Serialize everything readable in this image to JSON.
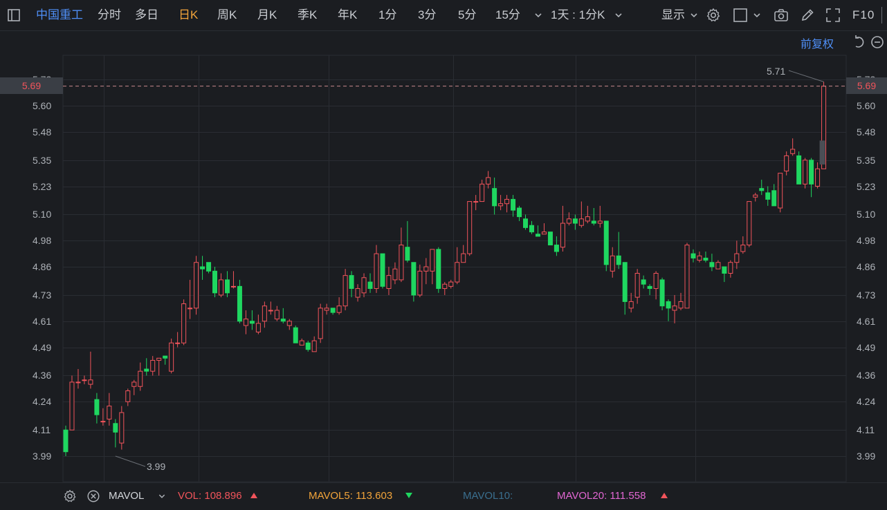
{
  "toolbar": {
    "stock_name": "中国重工",
    "periods": [
      "分时",
      "多日",
      "日K",
      "周K",
      "月K",
      "季K",
      "年K",
      "1分",
      "3分",
      "5分",
      "15分"
    ],
    "active_period": "日K",
    "range_select": "1天 : 1分K",
    "display_label": "显示",
    "f10_label": "F10"
  },
  "chart": {
    "adjust_label": "前复权",
    "current_price_left": "5.69",
    "current_price_right": "5.69",
    "high_annotation": "5.71",
    "low_annotation": "3.99",
    "y_ticks": [
      "5.72",
      "5.60",
      "5.48",
      "5.35",
      "5.23",
      "5.10",
      "4.98",
      "4.86",
      "4.73",
      "4.61",
      "4.49",
      "4.36",
      "4.24",
      "4.11",
      "3.99"
    ],
    "colors": {
      "up": "#f2545b",
      "down": "#1fd760",
      "bg": "#1b1d21",
      "grid": "#2a2d33"
    }
  },
  "indicator": {
    "name": "MAVOL",
    "vol_label": "VOL: 108.896",
    "mavol5_label": "MAVOL5: 113.603",
    "mavol10_label": "MAVOL10:",
    "mavol20_label": "MAVOL20: 111.558"
  },
  "chart_data": {
    "type": "candlestick",
    "title": "",
    "y_range": [
      3.93,
      5.75
    ],
    "candles": [
      [
        4.11,
        4.01,
        4.13,
        3.99
      ],
      [
        4.11,
        4.33,
        4.36,
        4.11
      ],
      [
        4.33,
        4.33,
        4.39,
        4.3
      ],
      [
        4.34,
        4.34,
        4.36,
        4.32
      ],
      [
        4.32,
        4.34,
        4.47,
        4.3
      ],
      [
        4.25,
        4.18,
        4.28,
        4.14
      ],
      [
        4.15,
        4.15,
        4.21,
        4.13
      ],
      [
        4.16,
        4.22,
        4.28,
        4.13
      ],
      [
        4.14,
        4.1,
        4.16,
        4.03
      ],
      [
        4.05,
        4.19,
        4.22,
        4.02
      ],
      [
        4.24,
        4.29,
        4.3,
        4.22
      ],
      [
        4.31,
        4.33,
        4.34,
        4.27
      ],
      [
        4.31,
        4.38,
        4.42,
        4.29
      ],
      [
        4.39,
        4.38,
        4.44,
        4.36
      ],
      [
        4.38,
        4.43,
        4.45,
        4.36
      ],
      [
        4.43,
        4.44,
        4.44,
        4.36
      ],
      [
        4.45,
        4.44,
        4.45,
        4.41
      ],
      [
        4.38,
        4.51,
        4.53,
        4.37
      ],
      [
        4.51,
        4.51,
        4.56,
        4.49
      ],
      [
        4.51,
        4.69,
        4.71,
        4.5
      ],
      [
        4.67,
        4.67,
        4.8,
        4.62
      ],
      [
        4.67,
        4.88,
        4.91,
        4.64
      ],
      [
        4.86,
        4.85,
        4.91,
        4.8
      ],
      [
        4.88,
        4.84,
        4.88,
        4.83
      ],
      [
        4.84,
        4.74,
        4.86,
        4.72
      ],
      [
        4.73,
        4.8,
        4.83,
        4.72
      ],
      [
        4.8,
        4.74,
        4.84,
        4.72
      ],
      [
        4.77,
        4.77,
        4.84,
        4.76
      ],
      [
        4.77,
        4.61,
        4.8,
        4.6
      ],
      [
        4.59,
        4.62,
        4.66,
        4.55
      ],
      [
        4.61,
        4.6,
        4.66,
        4.57
      ],
      [
        4.56,
        4.6,
        4.64,
        4.55
      ],
      [
        4.61,
        4.68,
        4.7,
        4.58
      ],
      [
        4.66,
        4.66,
        4.7,
        4.64
      ],
      [
        4.62,
        4.66,
        4.68,
        4.61
      ],
      [
        4.62,
        4.61,
        4.67,
        4.6
      ],
      [
        4.59,
        4.61,
        4.62,
        4.57
      ],
      [
        4.58,
        4.51,
        4.59,
        4.51
      ],
      [
        4.5,
        4.52,
        4.53,
        4.5
      ],
      [
        4.51,
        4.48,
        4.52,
        4.47
      ],
      [
        4.47,
        4.52,
        4.54,
        4.47
      ],
      [
        4.53,
        4.67,
        4.69,
        4.51
      ],
      [
        4.66,
        4.67,
        4.69,
        4.64
      ],
      [
        4.67,
        4.65,
        4.67,
        4.64
      ],
      [
        4.65,
        4.68,
        4.72,
        4.64
      ],
      [
        4.68,
        4.82,
        4.85,
        4.66
      ],
      [
        4.82,
        4.76,
        4.84,
        4.72
      ],
      [
        4.72,
        4.76,
        4.78,
        4.7
      ],
      [
        4.74,
        4.81,
        4.83,
        4.72
      ],
      [
        4.79,
        4.76,
        4.83,
        4.74
      ],
      [
        4.76,
        4.92,
        4.96,
        4.74
      ],
      [
        4.92,
        4.77,
        4.92,
        4.76
      ],
      [
        4.76,
        4.82,
        4.86,
        4.73
      ],
      [
        4.8,
        4.85,
        4.88,
        4.78
      ],
      [
        4.8,
        4.96,
        5.04,
        4.79
      ],
      [
        4.95,
        4.89,
        5.07,
        4.88
      ],
      [
        4.88,
        4.73,
        4.88,
        4.7
      ],
      [
        4.73,
        4.84,
        4.87,
        4.72
      ],
      [
        4.84,
        4.86,
        4.9,
        4.78
      ],
      [
        4.84,
        4.94,
        4.94,
        4.78
      ],
      [
        4.94,
        4.76,
        4.95,
        4.74
      ],
      [
        4.76,
        4.78,
        4.79,
        4.73
      ],
      [
        4.77,
        4.79,
        4.8,
        4.76
      ],
      [
        4.79,
        4.88,
        4.95,
        4.78
      ],
      [
        4.88,
        4.92,
        4.96,
        4.88
      ],
      [
        4.92,
        5.16,
        5.16,
        4.91
      ],
      [
        5.16,
        5.16,
        5.19,
        5.12
      ],
      [
        5.16,
        5.24,
        5.26,
        5.16
      ],
      [
        5.24,
        5.27,
        5.3,
        5.22
      ],
      [
        5.22,
        5.14,
        5.27,
        5.1
      ],
      [
        5.14,
        5.15,
        5.19,
        5.12
      ],
      [
        5.15,
        5.17,
        5.19,
        5.11
      ],
      [
        5.17,
        5.12,
        5.19,
        5.09
      ],
      [
        5.13,
        5.09,
        5.14,
        5.07
      ],
      [
        5.08,
        5.04,
        5.1,
        5.03
      ],
      [
        5.05,
        5.02,
        5.07,
        5.01
      ],
      [
        5.01,
        5.0,
        5.05,
        5.0
      ],
      [
        5.01,
        5.02,
        5.06,
        5.01
      ],
      [
        5.02,
        4.96,
        5.02,
        4.96
      ],
      [
        4.96,
        4.93,
        5.0,
        4.91
      ],
      [
        4.95,
        5.06,
        5.14,
        4.93
      ],
      [
        5.06,
        5.08,
        5.11,
        5.05
      ],
      [
        5.08,
        5.06,
        5.1,
        5.03
      ],
      [
        5.05,
        5.08,
        5.16,
        5.04
      ],
      [
        5.07,
        5.09,
        5.14,
        5.06
      ],
      [
        5.07,
        5.06,
        5.13,
        5.05
      ],
      [
        5.06,
        5.07,
        5.14,
        5.04
      ],
      [
        5.07,
        4.87,
        5.07,
        4.84
      ],
      [
        4.84,
        4.91,
        4.95,
        4.81
      ],
      [
        4.91,
        4.87,
        5.02,
        4.85
      ],
      [
        4.88,
        4.7,
        4.88,
        4.64
      ],
      [
        4.67,
        4.7,
        4.74,
        4.65
      ],
      [
        4.72,
        4.83,
        4.85,
        4.69
      ],
      [
        4.8,
        4.78,
        4.82,
        4.76
      ],
      [
        4.77,
        4.76,
        4.78,
        4.73
      ],
      [
        4.76,
        4.83,
        4.84,
        4.71
      ],
      [
        4.8,
        4.68,
        4.81,
        4.66
      ],
      [
        4.7,
        4.67,
        4.71,
        4.61
      ],
      [
        4.66,
        4.68,
        4.73,
        4.6
      ],
      [
        4.67,
        4.7,
        4.74,
        4.66
      ],
      [
        4.67,
        4.96,
        4.97,
        4.67
      ],
      [
        4.92,
        4.9,
        4.94,
        4.88
      ],
      [
        4.89,
        4.91,
        4.93,
        4.88
      ],
      [
        4.9,
        4.89,
        4.93,
        4.88
      ],
      [
        4.88,
        4.86,
        4.92,
        4.84
      ],
      [
        4.85,
        4.88,
        4.89,
        4.85
      ],
      [
        4.86,
        4.83,
        4.86,
        4.79
      ],
      [
        4.83,
        4.88,
        4.89,
        4.81
      ],
      [
        4.88,
        4.92,
        4.98,
        4.85
      ],
      [
        4.93,
        4.96,
        5.0,
        4.92
      ],
      [
        4.96,
        5.16,
        5.16,
        4.95
      ],
      [
        5.18,
        5.19,
        5.2,
        5.16
      ],
      [
        5.22,
        5.21,
        5.26,
        5.19
      ],
      [
        5.2,
        5.17,
        5.23,
        5.14
      ],
      [
        5.21,
        5.14,
        5.24,
        5.14
      ],
      [
        5.13,
        5.29,
        5.29,
        5.11
      ],
      [
        5.3,
        5.37,
        5.39,
        5.28
      ],
      [
        5.38,
        5.4,
        5.45,
        5.37
      ],
      [
        5.37,
        5.24,
        5.39,
        5.24
      ],
      [
        5.24,
        5.35,
        5.36,
        5.22
      ],
      [
        5.35,
        5.24,
        5.36,
        5.18
      ],
      [
        5.23,
        5.31,
        5.34,
        5.22
      ],
      [
        5.31,
        5.69,
        5.71,
        5.31
      ]
    ],
    "live_bar": [
      5.44,
      5.33
    ]
  }
}
